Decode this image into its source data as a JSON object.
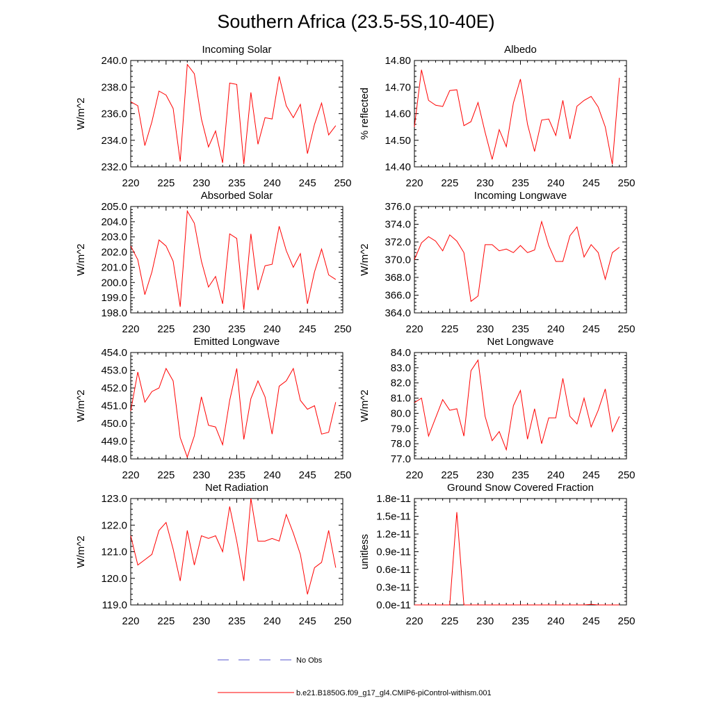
{
  "title": "Southern Africa (23.5-5S,10-40E)",
  "legend": [
    {
      "label": "No Obs",
      "color": "#5555cc",
      "style": "dashed"
    },
    {
      "label": "b.e21.B1850G.f09_g17_gl4.CMIP6-piControl-withism.001",
      "color": "#ff0000",
      "style": "solid"
    }
  ],
  "chart_data": [
    {
      "type": "line",
      "title": "Incoming Solar",
      "ylabel": "W/m^2",
      "xlim": [
        220,
        250
      ],
      "ylim": [
        232,
        240
      ],
      "xticks": [
        "220",
        "225",
        "230",
        "235",
        "240",
        "245",
        "250"
      ],
      "yticks": [
        "232.0",
        "234.0",
        "236.0",
        "238.0",
        "240.0"
      ],
      "series": [
        {
          "color": "#ff0000",
          "x": [
            220,
            221,
            222,
            223,
            224,
            225,
            226,
            227,
            228,
            229,
            230,
            231,
            232,
            233,
            234,
            235,
            236,
            237,
            238,
            239,
            240,
            241,
            242,
            243,
            244,
            245,
            246,
            247,
            248,
            249
          ],
          "y": [
            236.9,
            236.6,
            233.6,
            235.4,
            237.7,
            237.4,
            236.4,
            232.4,
            239.7,
            239.0,
            235.6,
            233.5,
            234.7,
            232.3,
            238.3,
            238.2,
            232.2,
            237.6,
            233.7,
            235.7,
            235.6,
            238.8,
            236.6,
            235.7,
            236.7,
            233.0,
            235.2,
            236.8,
            234.4,
            235.1
          ]
        }
      ]
    },
    {
      "type": "line",
      "title": "Albedo",
      "ylabel": "% reflected",
      "xlim": [
        220,
        250
      ],
      "ylim": [
        14.4,
        14.8
      ],
      "xticks": [
        "220",
        "225",
        "230",
        "235",
        "240",
        "245",
        "250"
      ],
      "yticks": [
        "14.40",
        "14.50",
        "14.60",
        "14.70",
        "14.80"
      ],
      "series": [
        {
          "color": "#ff0000",
          "x": [
            220,
            221,
            222,
            223,
            224,
            225,
            226,
            227,
            228,
            229,
            230,
            231,
            232,
            233,
            234,
            235,
            236,
            237,
            238,
            239,
            240,
            241,
            242,
            243,
            244,
            245,
            246,
            247,
            248,
            249
          ],
          "y": [
            14.55,
            14.765,
            14.65,
            14.632,
            14.627,
            14.687,
            14.69,
            14.555,
            14.57,
            14.642,
            14.53,
            14.428,
            14.54,
            14.476,
            14.64,
            14.73,
            14.56,
            14.458,
            14.576,
            14.58,
            14.518,
            14.65,
            14.505,
            14.628,
            14.65,
            14.665,
            14.625,
            14.55,
            14.41,
            14.735
          ]
        }
      ]
    },
    {
      "type": "line",
      "title": "Absorbed Solar",
      "ylabel": "W/m^2",
      "xlim": [
        220,
        250
      ],
      "ylim": [
        198,
        205
      ],
      "xticks": [
        "220",
        "225",
        "230",
        "235",
        "240",
        "245",
        "250"
      ],
      "yticks": [
        "198.0",
        "199.0",
        "200.0",
        "201.0",
        "202.0",
        "203.0",
        "204.0",
        "205.0"
      ],
      "series": [
        {
          "color": "#ff0000",
          "x": [
            220,
            221,
            222,
            223,
            224,
            225,
            226,
            227,
            228,
            229,
            230,
            231,
            232,
            233,
            234,
            235,
            236,
            237,
            238,
            239,
            240,
            241,
            242,
            243,
            244,
            245,
            246,
            247,
            248,
            249
          ],
          "y": [
            202.4,
            201.5,
            199.2,
            200.7,
            202.8,
            202.4,
            201.4,
            198.4,
            204.7,
            203.9,
            201.4,
            199.7,
            200.4,
            198.6,
            203.2,
            202.9,
            198.2,
            203.2,
            199.5,
            201.1,
            201.2,
            203.7,
            202.1,
            201.0,
            201.9,
            198.6,
            200.7,
            202.2,
            200.5,
            200.2
          ]
        }
      ]
    },
    {
      "type": "line",
      "title": "Incoming Longwave",
      "ylabel": "W/m^2",
      "xlim": [
        220,
        250
      ],
      "ylim": [
        364,
        376
      ],
      "xticks": [
        "220",
        "225",
        "230",
        "235",
        "240",
        "245",
        "250"
      ],
      "yticks": [
        "364.0",
        "366.0",
        "368.0",
        "370.0",
        "372.0",
        "374.0",
        "376.0"
      ],
      "series": [
        {
          "color": "#ff0000",
          "x": [
            220,
            221,
            222,
            223,
            224,
            225,
            226,
            227,
            228,
            229,
            230,
            231,
            232,
            233,
            234,
            235,
            236,
            237,
            238,
            239,
            240,
            241,
            242,
            243,
            244,
            245,
            246,
            247,
            248,
            249
          ],
          "y": [
            370.0,
            371.9,
            372.6,
            372.1,
            371.0,
            372.8,
            372.1,
            370.8,
            365.3,
            365.9,
            371.7,
            371.7,
            371.0,
            371.2,
            370.8,
            371.6,
            370.8,
            371.1,
            374.3,
            371.6,
            369.8,
            369.8,
            372.7,
            373.7,
            370.3,
            371.7,
            370.8,
            367.8,
            370.8,
            371.4
          ]
        }
      ]
    },
    {
      "type": "line",
      "title": "Emitted Longwave",
      "ylabel": "W/m^2",
      "xlim": [
        220,
        250
      ],
      "ylim": [
        448,
        454
      ],
      "xticks": [
        "220",
        "225",
        "230",
        "235",
        "240",
        "245",
        "250"
      ],
      "yticks": [
        "448.0",
        "449.0",
        "450.0",
        "451.0",
        "452.0",
        "453.0",
        "454.0"
      ],
      "series": [
        {
          "color": "#ff0000",
          "x": [
            220,
            221,
            222,
            223,
            224,
            225,
            226,
            227,
            228,
            229,
            230,
            231,
            232,
            233,
            234,
            235,
            236,
            237,
            238,
            239,
            240,
            241,
            242,
            243,
            244,
            245,
            246,
            247,
            248,
            249
          ],
          "y": [
            450.7,
            452.9,
            451.2,
            451.8,
            452.0,
            453.1,
            452.4,
            449.2,
            448.1,
            449.3,
            451.5,
            449.9,
            449.8,
            448.8,
            451.3,
            453.1,
            449.1,
            451.4,
            452.4,
            451.5,
            449.4,
            452.1,
            452.4,
            453.1,
            451.3,
            450.8,
            451.0,
            449.4,
            449.5,
            451.2
          ]
        }
      ]
    },
    {
      "type": "line",
      "title": "Net Longwave",
      "ylabel": "W/m^2",
      "xlim": [
        220,
        250
      ],
      "ylim": [
        77,
        84
      ],
      "xticks": [
        "220",
        "225",
        "230",
        "235",
        "240",
        "245",
        "250"
      ],
      "yticks": [
        "77.0",
        "78.0",
        "79.0",
        "80.0",
        "81.0",
        "82.0",
        "83.0",
        "84.0"
      ],
      "series": [
        {
          "color": "#ff0000",
          "x": [
            220,
            221,
            222,
            223,
            224,
            225,
            226,
            227,
            228,
            229,
            230,
            231,
            232,
            233,
            234,
            235,
            236,
            237,
            238,
            239,
            240,
            241,
            242,
            243,
            244,
            245,
            246,
            247,
            248,
            249
          ],
          "y": [
            80.7,
            81.0,
            78.5,
            79.7,
            80.9,
            80.2,
            80.3,
            78.5,
            82.8,
            83.5,
            79.8,
            78.2,
            78.8,
            77.6,
            80.5,
            81.5,
            78.3,
            80.3,
            78.0,
            79.7,
            79.7,
            82.3,
            79.8,
            79.3,
            81.0,
            79.1,
            80.2,
            81.6,
            78.8,
            79.8
          ]
        }
      ]
    },
    {
      "type": "line",
      "title": "Net Radiation",
      "ylabel": "W/m^2",
      "xlim": [
        220,
        250
      ],
      "ylim": [
        119,
        123
      ],
      "xticks": [
        "220",
        "225",
        "230",
        "235",
        "240",
        "245",
        "250"
      ],
      "yticks": [
        "119.0",
        "120.0",
        "121.0",
        "122.0",
        "123.0"
      ],
      "series": [
        {
          "color": "#ff0000",
          "x": [
            220,
            221,
            222,
            223,
            224,
            225,
            226,
            227,
            228,
            229,
            230,
            231,
            232,
            233,
            234,
            235,
            236,
            237,
            238,
            239,
            240,
            241,
            242,
            243,
            244,
            245,
            246,
            247,
            248,
            249
          ],
          "y": [
            121.6,
            120.5,
            120.7,
            120.9,
            121.8,
            122.1,
            121.1,
            119.9,
            121.8,
            120.5,
            121.6,
            121.5,
            121.6,
            121.0,
            122.7,
            121.4,
            119.9,
            123.0,
            121.4,
            121.4,
            121.5,
            121.4,
            122.4,
            121.7,
            120.9,
            119.4,
            120.4,
            120.6,
            121.8,
            120.4
          ]
        }
      ]
    },
    {
      "type": "line",
      "title": "Ground Snow Covered Fraction",
      "ylabel": "unitless",
      "xlim": [
        220,
        250
      ],
      "ylim": [
        0,
        1.8
      ],
      "yunit_note": "e-11",
      "xticks": [
        "220",
        "225",
        "230",
        "235",
        "240",
        "245",
        "250"
      ],
      "yticks": [
        "0.0e-11",
        "0.3e-11",
        "0.6e-11",
        "0.9e-11",
        "1.2e-11",
        "1.5e-11",
        "1.8e-11"
      ],
      "series": [
        {
          "color": "#ff0000",
          "x": [
            220,
            221,
            222,
            223,
            224,
            225,
            226,
            227,
            228,
            229,
            230,
            231,
            232,
            233,
            234,
            235,
            236,
            237,
            238,
            239,
            240,
            241,
            242,
            243,
            244,
            245,
            246,
            247,
            248,
            249
          ],
          "y": [
            0,
            0,
            0,
            0,
            0,
            0,
            1.57,
            0,
            0,
            0,
            0,
            0,
            0,
            0,
            0,
            0,
            0,
            0,
            0,
            0,
            0,
            0,
            0,
            0,
            0,
            0.01,
            0,
            0,
            0,
            0
          ]
        }
      ]
    }
  ]
}
